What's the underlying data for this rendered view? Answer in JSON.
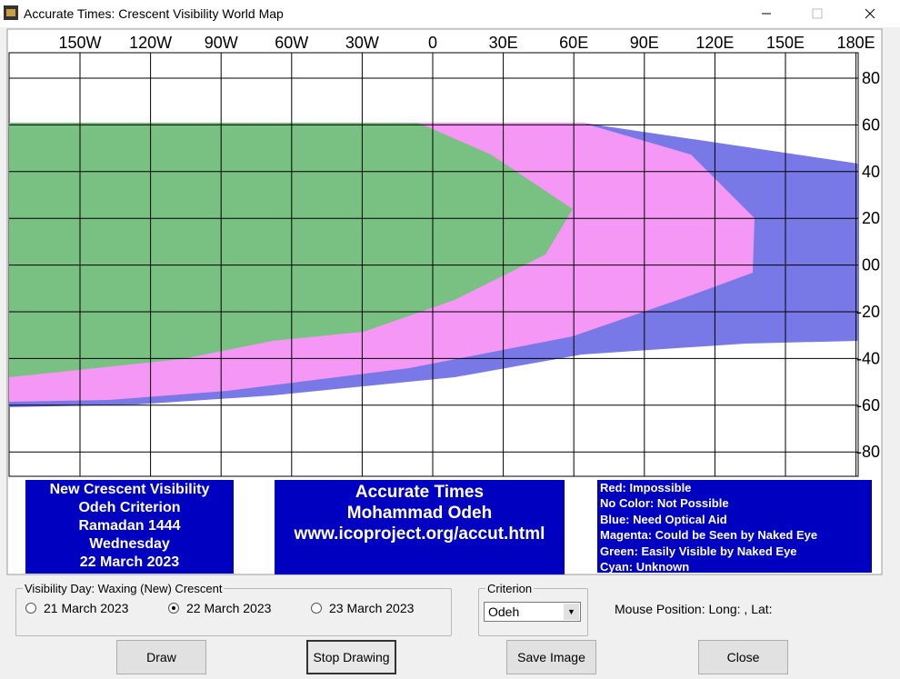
{
  "window": {
    "title": "Accurate Times: Crescent Visibility World Map"
  },
  "map": {
    "lon_labels": [
      "150W",
      "120W",
      "90W",
      "60W",
      "30W",
      "0",
      "30E",
      "60E",
      "90E",
      "120E",
      "150E",
      "180E"
    ],
    "lat_labels": [
      "80",
      "60",
      "40",
      "20",
      "00",
      "-20",
      "-40",
      "-60",
      "-80"
    ]
  },
  "panels": {
    "left": [
      "New Crescent Visibility",
      "Odeh Criterion",
      "Ramadan 1444",
      "Wednesday",
      "22 March 2023"
    ],
    "center": [
      "Accurate Times",
      "Mohammad Odeh",
      "www.icoproject.org/accut.html"
    ],
    "legend": [
      "Red: Impossible",
      "No Color: Not Possible",
      "Blue: Need Optical Aid",
      "Magenta: Could be Seen by Naked Eye",
      "Green: Easily Visible by Naked Eye",
      "Cyan: Unknown"
    ]
  },
  "controls": {
    "day_group": "Visibility Day: Waxing (New) Crescent",
    "days": [
      "21 March 2023",
      "22 March 2023",
      "23 March 2023"
    ],
    "criterion_group": "Criterion",
    "criterion": "Odeh",
    "mouse_position": "Mouse Position: Long: , Lat:",
    "buttons": [
      "Draw",
      "Stop Drawing",
      "Save Image",
      "Close"
    ]
  }
}
